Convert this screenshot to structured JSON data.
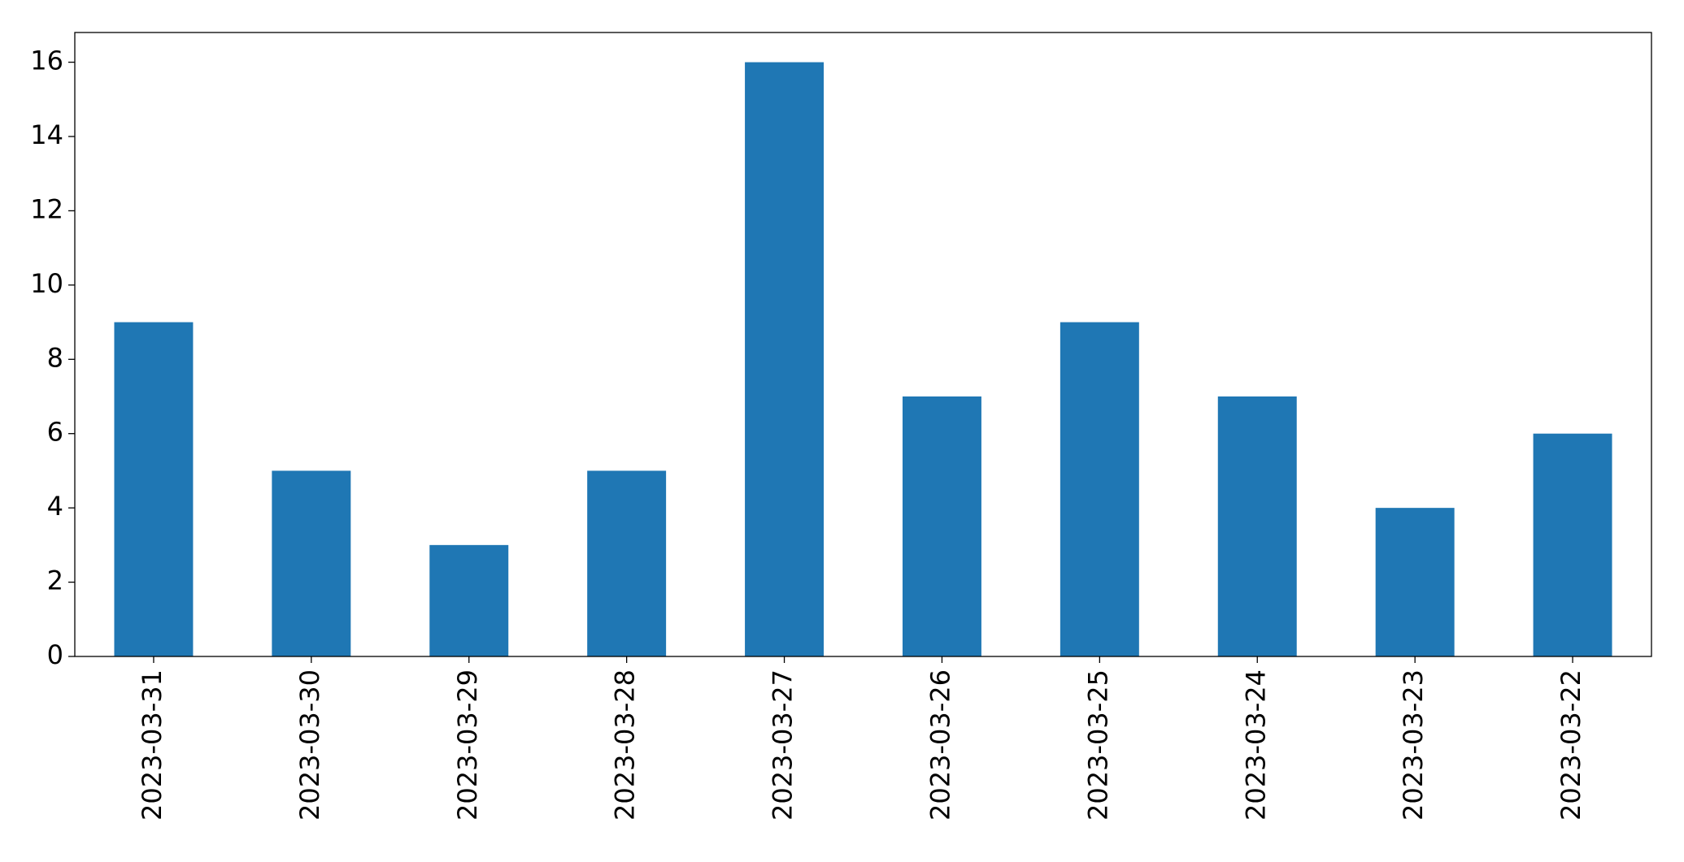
{
  "chart_data": {
    "type": "bar",
    "categories": [
      "2023-03-31",
      "2023-03-30",
      "2023-03-29",
      "2023-03-28",
      "2023-03-27",
      "2023-03-26",
      "2023-03-25",
      "2023-03-24",
      "2023-03-23",
      "2023-03-22"
    ],
    "values": [
      9,
      5,
      3,
      5,
      16,
      7,
      9,
      7,
      4,
      6
    ],
    "color": "#1f77b4",
    "ylim": [
      0,
      16.8
    ],
    "yticks": [
      0,
      2,
      4,
      6,
      8,
      10,
      12,
      14,
      16
    ],
    "grid": false
  }
}
